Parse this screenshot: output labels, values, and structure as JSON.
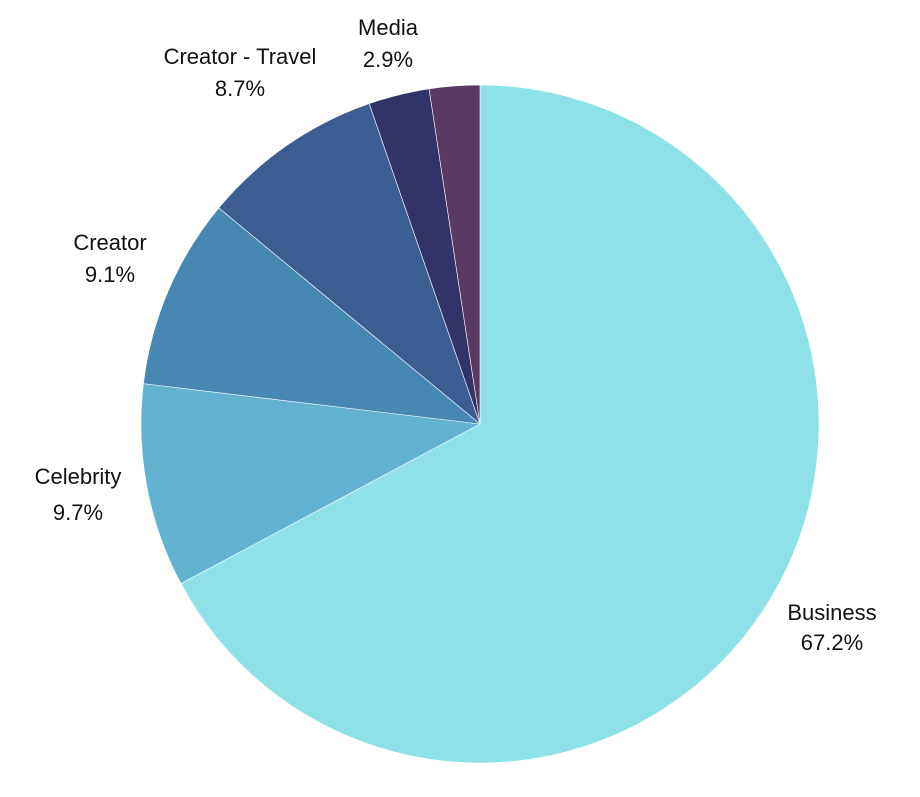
{
  "chart_data": {
    "type": "pie",
    "title": "",
    "start": "top",
    "direction": "clockwise",
    "slices": [
      {
        "name": "Business",
        "value": 67.2,
        "label": "67.2%",
        "color": "#8ee2e7"
      },
      {
        "name": "Celebrity",
        "value": 9.7,
        "label": "9.7%",
        "color": "#62b3d1"
      },
      {
        "name": "Creator",
        "value": 9.1,
        "label": "9.1%",
        "color": "#4787b4"
      },
      {
        "name": "Creator - Travel",
        "value": 8.7,
        "label": "8.7%",
        "color": "#3b5d92"
      },
      {
        "name": "Media",
        "value": 2.9,
        "label": "2.9%",
        "color": "#323468"
      },
      {
        "name": "",
        "value": 2.4,
        "label": "",
        "color": "#583a62"
      }
    ]
  }
}
